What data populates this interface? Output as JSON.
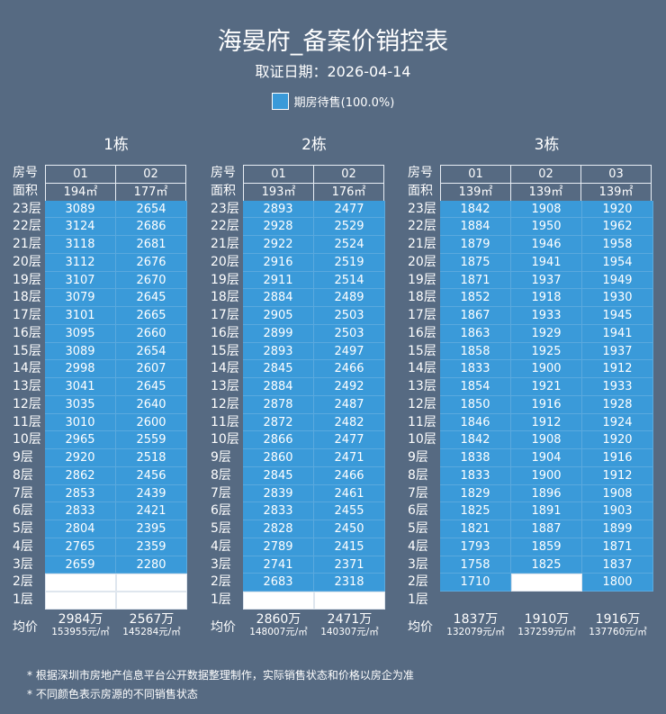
{
  "header": {
    "title": "海晏府_备案价销控表",
    "subtitle": "取证日期：2026-04-14",
    "legend_label": "期房待售(100.0%)",
    "legend_color": "#3a9ad9"
  },
  "labels": {
    "room": "房号",
    "area": "面积",
    "average": "均价"
  },
  "floors": [
    "23层",
    "22层",
    "21层",
    "20层",
    "19层",
    "18层",
    "17层",
    "16层",
    "15层",
    "14层",
    "13层",
    "12层",
    "11层",
    "10层",
    "9层",
    "8层",
    "7层",
    "6层",
    "5层",
    "4层",
    "3层",
    "2层",
    "1层"
  ],
  "buildings": [
    {
      "name": "1栋",
      "units": [
        "01",
        "02"
      ],
      "areas": [
        "194㎡",
        "177㎡"
      ],
      "rows": [
        [
          "3089",
          "2654"
        ],
        [
          "3124",
          "2686"
        ],
        [
          "3118",
          "2681"
        ],
        [
          "3112",
          "2676"
        ],
        [
          "3107",
          "2670"
        ],
        [
          "3079",
          "2645"
        ],
        [
          "3101",
          "2665"
        ],
        [
          "3095",
          "2660"
        ],
        [
          "3089",
          "2654"
        ],
        [
          "2998",
          "2607"
        ],
        [
          "3041",
          "2645"
        ],
        [
          "3035",
          "2640"
        ],
        [
          "3010",
          "2600"
        ],
        [
          "2965",
          "2559"
        ],
        [
          "2920",
          "2518"
        ],
        [
          "2862",
          "2456"
        ],
        [
          "2853",
          "2439"
        ],
        [
          "2833",
          "2421"
        ],
        [
          "2804",
          "2395"
        ],
        [
          "2765",
          "2359"
        ],
        [
          "2659",
          "2280"
        ],
        [
          "",
          ""
        ],
        [
          "",
          ""
        ]
      ],
      "avg_total": [
        "2984万",
        "2567万"
      ],
      "avg_unit": [
        "153955元/㎡",
        "145284元/㎡"
      ]
    },
    {
      "name": "2栋",
      "units": [
        "01",
        "02"
      ],
      "areas": [
        "193㎡",
        "176㎡"
      ],
      "rows": [
        [
          "2893",
          "2477"
        ],
        [
          "2928",
          "2529"
        ],
        [
          "2922",
          "2524"
        ],
        [
          "2916",
          "2519"
        ],
        [
          "2911",
          "2514"
        ],
        [
          "2884",
          "2489"
        ],
        [
          "2905",
          "2503"
        ],
        [
          "2899",
          "2503"
        ],
        [
          "2893",
          "2497"
        ],
        [
          "2845",
          "2466"
        ],
        [
          "2884",
          "2492"
        ],
        [
          "2878",
          "2487"
        ],
        [
          "2872",
          "2482"
        ],
        [
          "2866",
          "2477"
        ],
        [
          "2860",
          "2471"
        ],
        [
          "2845",
          "2466"
        ],
        [
          "2839",
          "2461"
        ],
        [
          "2833",
          "2455"
        ],
        [
          "2828",
          "2450"
        ],
        [
          "2789",
          "2415"
        ],
        [
          "2741",
          "2371"
        ],
        [
          "2683",
          "2318"
        ],
        [
          "",
          ""
        ]
      ],
      "avg_total": [
        "2860万",
        "2471万"
      ],
      "avg_unit": [
        "148007元/㎡",
        "140307元/㎡"
      ]
    },
    {
      "name": "3栋",
      "units": [
        "01",
        "02",
        "03"
      ],
      "areas": [
        "139㎡",
        "139㎡",
        "139㎡"
      ],
      "rows": [
        [
          "1842",
          "1908",
          "1920"
        ],
        [
          "1884",
          "1950",
          "1962"
        ],
        [
          "1879",
          "1946",
          "1958"
        ],
        [
          "1875",
          "1941",
          "1954"
        ],
        [
          "1871",
          "1937",
          "1949"
        ],
        [
          "1852",
          "1918",
          "1930"
        ],
        [
          "1867",
          "1933",
          "1945"
        ],
        [
          "1863",
          "1929",
          "1941"
        ],
        [
          "1858",
          "1925",
          "1937"
        ],
        [
          "1833",
          "1900",
          "1912"
        ],
        [
          "1854",
          "1921",
          "1933"
        ],
        [
          "1850",
          "1916",
          "1928"
        ],
        [
          "1846",
          "1912",
          "1924"
        ],
        [
          "1842",
          "1908",
          "1920"
        ],
        [
          "1838",
          "1904",
          "1916"
        ],
        [
          "1833",
          "1900",
          "1912"
        ],
        [
          "1829",
          "1896",
          "1908"
        ],
        [
          "1825",
          "1891",
          "1903"
        ],
        [
          "1821",
          "1887",
          "1899"
        ],
        [
          "1793",
          "1859",
          "1871"
        ],
        [
          "1758",
          "1825",
          "1837"
        ],
        [
          "1710",
          "",
          "1800"
        ],
        [
          "",
          "",
          ""
        ]
      ],
      "avg_total": [
        "1837万",
        "1910万",
        "1916万"
      ],
      "avg_unit": [
        "132079元/㎡",
        "137259元/㎡",
        "137760元/㎡"
      ]
    }
  ],
  "notes": [
    "* 根据深圳市房地产信息平台公开数据整理制作，实际销售状态和价格以房企为准",
    "* 不同颜色表示房源的不同销售状态"
  ]
}
